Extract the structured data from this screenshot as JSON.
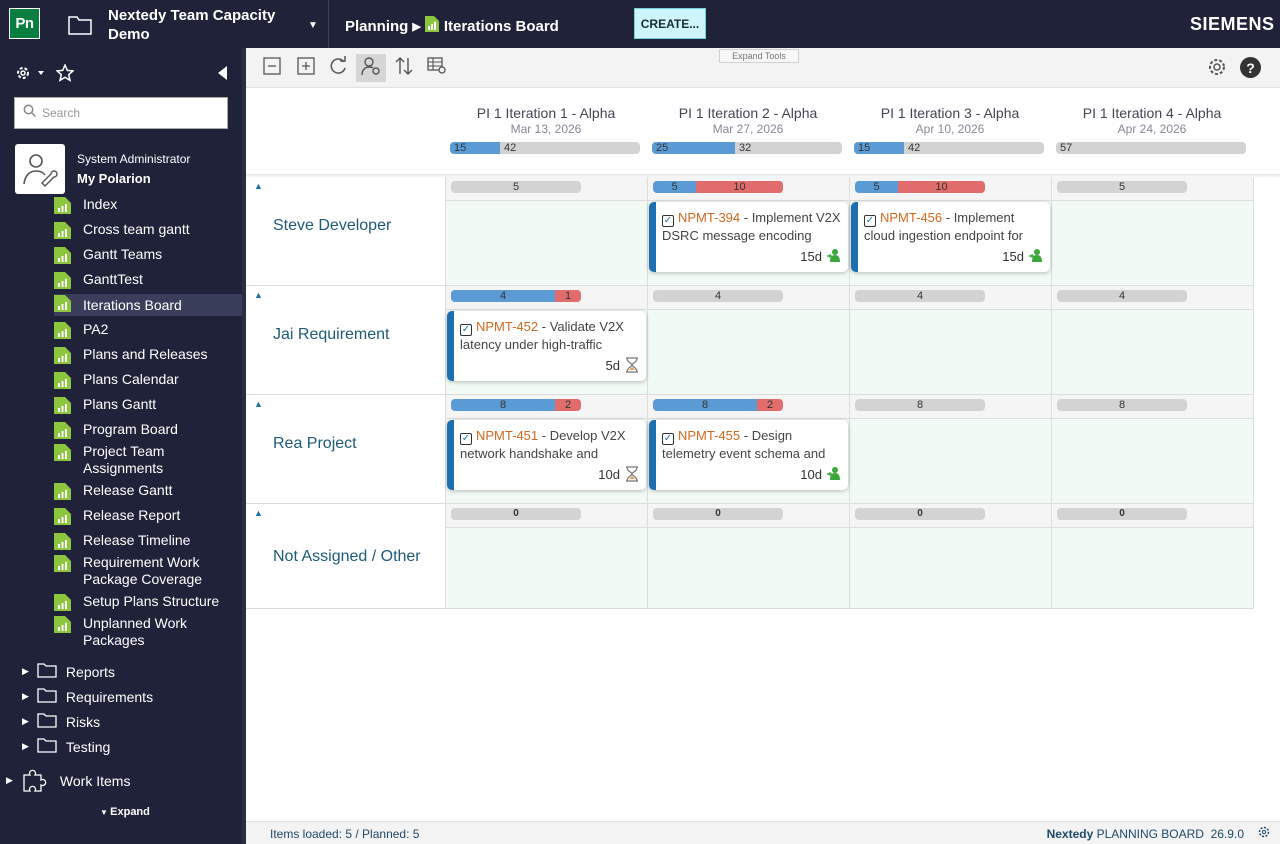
{
  "app": {
    "logo": "Pn",
    "project_name": "Nextedy Team Capacity Demo",
    "breadcrumb": [
      "Planning",
      "Iterations Board"
    ],
    "create_label": "CREATE...",
    "brand": "SIEMENS"
  },
  "sidebar": {
    "search_placeholder": "Search",
    "user_role": "System Administrator",
    "user_link": "My Polarion",
    "items": [
      {
        "label": "Index"
      },
      {
        "label": "Cross team gantt"
      },
      {
        "label": "Gantt Teams"
      },
      {
        "label": "GanttTest"
      },
      {
        "label": "Iterations Board",
        "active": true
      },
      {
        "label": "PA2"
      },
      {
        "label": "Plans and Releases"
      },
      {
        "label": "Plans Calendar"
      },
      {
        "label": "Plans Gantt"
      },
      {
        "label": "Program Board"
      },
      {
        "label": "Project Team Assignments"
      },
      {
        "label": "Release Gantt"
      },
      {
        "label": "Release Report"
      },
      {
        "label": "Release Timeline"
      },
      {
        "label": "Requirement Work Package Coverage"
      },
      {
        "label": "Setup Plans Structure"
      },
      {
        "label": "Unplanned Work Packages"
      }
    ],
    "folders": [
      "Reports",
      "Requirements",
      "Risks",
      "Testing"
    ],
    "work_items": "Work Items",
    "expand_label": "Expand"
  },
  "toolbar": {
    "expand_tools": "Expand Tools",
    "help": "?"
  },
  "iterations": [
    {
      "name": "PI 1 Iteration 1 - Alpha",
      "date": "Mar 13, 2026",
      "planned": 15,
      "remaining": 42,
      "capacity": 57
    },
    {
      "name": "PI 1 Iteration 2 - Alpha",
      "date": "Mar 27, 2026",
      "planned": 25,
      "remaining": 32,
      "capacity": 57
    },
    {
      "name": "PI 1 Iteration 3 - Alpha",
      "date": "Apr 10, 2026",
      "planned": 15,
      "remaining": 42,
      "capacity": 57
    },
    {
      "name": "PI 1 Iteration 4 - Alpha",
      "date": "Apr 24, 2026",
      "planned": 0,
      "remaining": 57,
      "capacity": 57
    }
  ],
  "lanes": [
    {
      "name": "Steve Developer",
      "cells": [
        {
          "cap": 5,
          "used": 0,
          "over": 0,
          "label_total": "5"
        },
        {
          "cap": 5,
          "used": 5,
          "over": 10,
          "label_used": "5",
          "label_over": "10"
        },
        {
          "cap": 5,
          "used": 5,
          "over": 10,
          "label_used": "5",
          "label_over": "10"
        },
        {
          "cap": 5,
          "used": 0,
          "over": 0,
          "label_total": "5"
        }
      ]
    },
    {
      "name": "Jai Requirement",
      "cells": [
        {
          "cap": 5,
          "used": 4,
          "over": 1,
          "label_used": "4",
          "label_over": "1"
        },
        {
          "cap": 4,
          "used": 0,
          "over": 0,
          "label_total": "4"
        },
        {
          "cap": 4,
          "used": 0,
          "over": 0,
          "label_total": "4"
        },
        {
          "cap": 4,
          "used": 0,
          "over": 0,
          "label_total": "4"
        }
      ]
    },
    {
      "name": "Rea Project",
      "cells": [
        {
          "cap": 10,
          "used": 8,
          "over": 2,
          "label_used": "8",
          "label_over": "2"
        },
        {
          "cap": 10,
          "used": 8,
          "over": 2,
          "label_used": "8",
          "label_over": "2"
        },
        {
          "cap": 8,
          "used": 0,
          "over": 0,
          "label_total": "8"
        },
        {
          "cap": 8,
          "used": 0,
          "over": 0,
          "label_total": "8"
        }
      ]
    },
    {
      "name": "Not Assigned / Other",
      "cells": [
        {
          "label_total": "0"
        },
        {
          "label_total": "0"
        },
        {
          "label_total": "0"
        },
        {
          "label_total": "0"
        }
      ]
    }
  ],
  "cards": [
    {
      "lane": 0,
      "col": 1,
      "id": "NPMT-394",
      "title": " - Implement V2X DSRC message encoding",
      "duration": "15d",
      "status_icon": "person-assigned-icon"
    },
    {
      "lane": 0,
      "col": 2,
      "id": "NPMT-456",
      "title": " - Implement cloud ingestion endpoint for",
      "duration": "15d",
      "status_icon": "person-assigned-icon"
    },
    {
      "lane": 1,
      "col": 0,
      "id": "NPMT-452",
      "title": " - Validate V2X latency under high-traffic",
      "duration": "5d",
      "status_icon": "hourglass-icon"
    },
    {
      "lane": 2,
      "col": 0,
      "id": "NPMT-451",
      "title": " - Develop V2X network handshake and",
      "duration": "10d",
      "status_icon": "hourglass-icon"
    },
    {
      "lane": 2,
      "col": 1,
      "id": "NPMT-455",
      "title": " - Design telemetry event schema and",
      "duration": "10d",
      "status_icon": "person-assigned-icon"
    }
  ],
  "status": {
    "loaded": "Items loaded: 5  / Planned: 5",
    "brand": "Nextedy",
    "product": "PLANNING BOARD",
    "version": "26.9.0"
  },
  "colors": {
    "topbar": "#1f2238",
    "planned": "#5b9bd5",
    "over": "#e06c6c",
    "card_accent": "#1e6fb0",
    "item_id": "#d2691e"
  }
}
